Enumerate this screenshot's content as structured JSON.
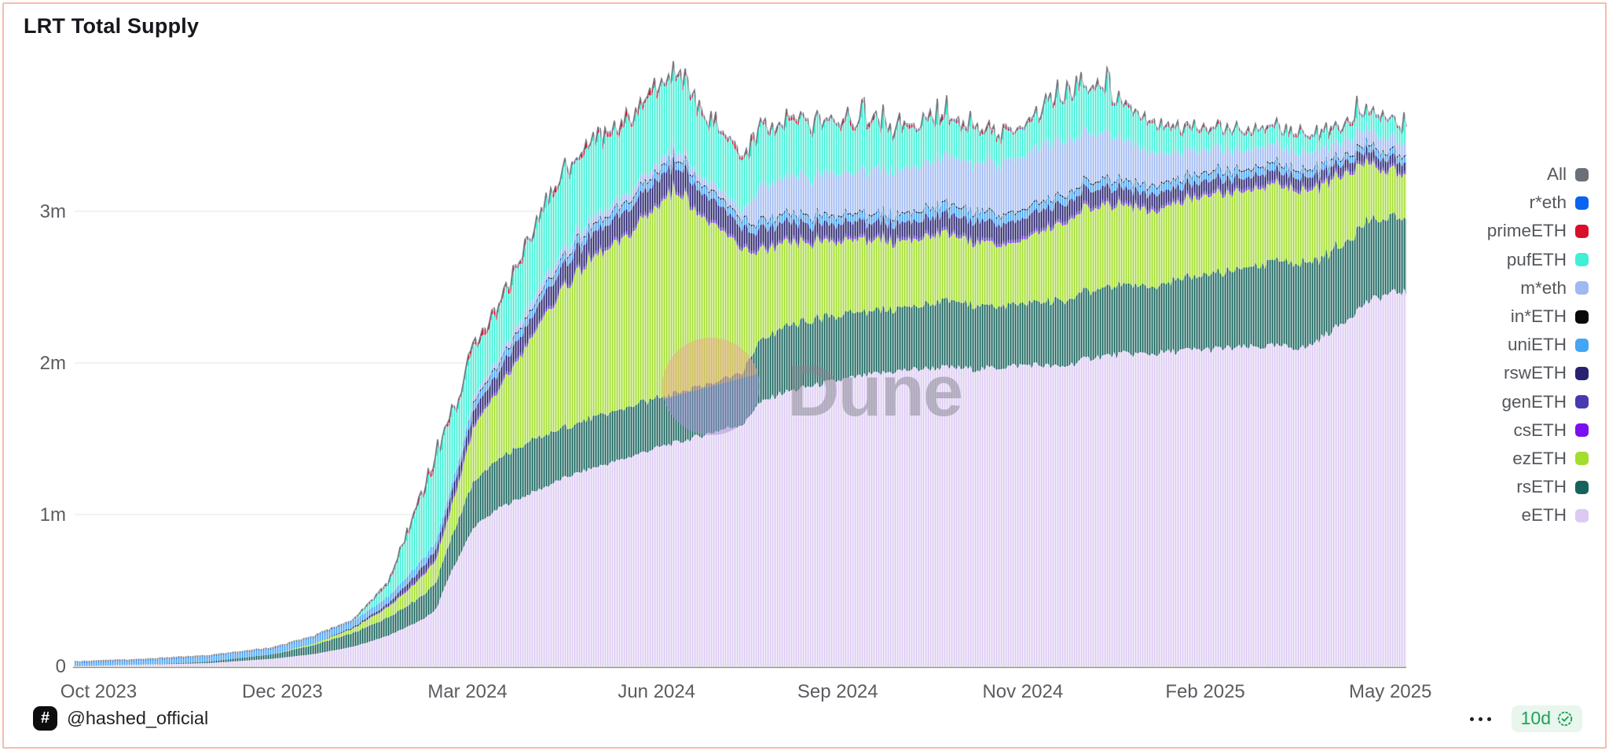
{
  "card": {
    "title": "LRT Total Supply",
    "border_color": "#f7bcab"
  },
  "footer": {
    "author_handle": "@hashed_official",
    "author_icon": "hash-icon",
    "menu_icon": "ellipsis-icon",
    "badge": {
      "label": "10d",
      "icon": "verified-seal-icon",
      "text_color": "#1fa357",
      "bg_color": "#e8f6ed"
    }
  },
  "watermark": {
    "text": "Dune",
    "circle_top_color": "#f0a88a",
    "circle_bottom_color": "#a195d6",
    "text_color": "#84848e"
  },
  "chart_data": {
    "type": "bar",
    "stacked": true,
    "title": "LRT Total Supply",
    "xlabel": "",
    "ylabel": "",
    "unit_note": "y values in millions of tokens; x is Oct 2023 - May 2025 expressed as fraction of axis",
    "grid": "horizontal",
    "ylim": [
      0,
      4.09
    ],
    "y_ticks": [
      {
        "label": "0",
        "value": 0
      },
      {
        "label": "1m",
        "value": 1
      },
      {
        "label": "2m",
        "value": 2
      },
      {
        "label": "3m",
        "value": 3
      }
    ],
    "x_ticks": [
      {
        "label": "Oct 2023",
        "f": 0.018
      },
      {
        "label": "Dec 2023",
        "f": 0.156
      },
      {
        "label": "Mar 2024",
        "f": 0.295
      },
      {
        "label": "Jun 2024",
        "f": 0.437
      },
      {
        "label": "Sep 2024",
        "f": 0.573
      },
      {
        "label": "Nov 2024",
        "f": 0.712
      },
      {
        "label": "Feb 2025",
        "f": 0.849
      },
      {
        "label": "May 2025",
        "f": 0.988
      }
    ],
    "legend_position": "right",
    "legend": [
      {
        "label": "All",
        "color": "#6b6f76"
      },
      {
        "label": "r*eth",
        "color": "#0b63f2"
      },
      {
        "label": "primeETH",
        "color": "#d8102a"
      },
      {
        "label": "pufETH",
        "color": "#40f0d6"
      },
      {
        "label": "m*eth",
        "color": "#9fb9f2"
      },
      {
        "label": "in*ETH",
        "color": "#0a0a0a"
      },
      {
        "label": "uniETH",
        "color": "#45a5f5"
      },
      {
        "label": "rswETH",
        "color": "#272170"
      },
      {
        "label": "genETH",
        "color": "#483bb0"
      },
      {
        "label": "csETH",
        "color": "#7a10ef"
      },
      {
        "label": "ezETH",
        "color": "#a3dd2e"
      },
      {
        "label": "rsETH",
        "color": "#17635c"
      },
      {
        "label": "eETH",
        "color": "#dccaf3"
      }
    ],
    "all_cap_color": "#6b6f76",
    "control_fracs": [
      0,
      0.05,
      0.1,
      0.15,
      0.18,
      0.21,
      0.235,
      0.25,
      0.262,
      0.272,
      0.279,
      0.29,
      0.3,
      0.32,
      0.345,
      0.37,
      0.39,
      0.41,
      0.43,
      0.445,
      0.455,
      0.47,
      0.49,
      0.503,
      0.512,
      0.53,
      0.56,
      0.59,
      0.62,
      0.65,
      0.68,
      0.705,
      0.72,
      0.74,
      0.765,
      0.79,
      0.81,
      0.83,
      0.852,
      0.875,
      0.9,
      0.925,
      0.95,
      0.97,
      0.985,
      0.995
    ],
    "series": [
      {
        "name": "eETH",
        "color": "#dccaf3",
        "values": [
          0,
          0.01,
          0.02,
          0.05,
          0.08,
          0.13,
          0.2,
          0.26,
          0.31,
          0.38,
          0.55,
          0.75,
          0.92,
          1.05,
          1.15,
          1.25,
          1.31,
          1.36,
          1.42,
          1.46,
          1.48,
          1.52,
          1.57,
          1.6,
          1.72,
          1.8,
          1.86,
          1.91,
          1.95,
          1.97,
          1.96,
          1.98,
          1.99,
          1.97,
          2.04,
          2.06,
          2.06,
          2.08,
          2.09,
          2.1,
          2.11,
          2.1,
          2.25,
          2.4,
          2.45,
          2.47
        ]
      },
      {
        "name": "rsETH",
        "color": "#17635c",
        "values": [
          0,
          0,
          0.01,
          0.03,
          0.06,
          0.09,
          0.12,
          0.14,
          0.16,
          0.18,
          0.21,
          0.26,
          0.3,
          0.33,
          0.34,
          0.33,
          0.33,
          0.33,
          0.33,
          0.33,
          0.33,
          0.33,
          0.34,
          0.35,
          0.4,
          0.43,
          0.43,
          0.42,
          0.41,
          0.43,
          0.42,
          0.4,
          0.41,
          0.43,
          0.44,
          0.45,
          0.45,
          0.47,
          0.49,
          0.52,
          0.55,
          0.55,
          0.52,
          0.53,
          0.5,
          0.48
        ]
      },
      {
        "name": "ezETH",
        "color": "#a3dd2e",
        "values": [
          0,
          0,
          0,
          0,
          0.01,
          0.03,
          0.07,
          0.1,
          0.13,
          0.15,
          0.17,
          0.25,
          0.36,
          0.46,
          0.7,
          0.95,
          1.05,
          1.1,
          1.22,
          1.32,
          1.33,
          1.12,
          0.93,
          0.8,
          0.6,
          0.55,
          0.5,
          0.48,
          0.44,
          0.44,
          0.42,
          0.4,
          0.44,
          0.51,
          0.55,
          0.52,
          0.5,
          0.51,
          0.52,
          0.51,
          0.5,
          0.48,
          0.47,
          0.39,
          0.31,
          0.29
        ]
      },
      {
        "name": "csETH",
        "color": "#7a10ef",
        "values": [
          0,
          0,
          0,
          0,
          0,
          0,
          0.004,
          0.008,
          0.008,
          0.008,
          0.008,
          0.008,
          0.008,
          0.008,
          0.008,
          0.008,
          0.008,
          0.008,
          0.008,
          0.008,
          0.008,
          0.008,
          0.008,
          0.008,
          0.008,
          0.008,
          0.008,
          0.008,
          0.008,
          0.008,
          0.008,
          0.008,
          0.008,
          0.008,
          0.008,
          0.008,
          0.008,
          0.008,
          0.008,
          0.008,
          0.008,
          0.008,
          0.008,
          0.008,
          0.008,
          0.008
        ]
      },
      {
        "name": "genETH",
        "color": "#483bb0",
        "values": [
          0,
          0,
          0,
          0,
          0,
          0,
          0,
          0,
          0,
          0.006,
          0.012,
          0.012,
          0.012,
          0.012,
          0.012,
          0.012,
          0.012,
          0.012,
          0.012,
          0.012,
          0.012,
          0.012,
          0.012,
          0.012,
          0.012,
          0.012,
          0.012,
          0.012,
          0.012,
          0.012,
          0.012,
          0.012,
          0.012,
          0.012,
          0.012,
          0.012,
          0.012,
          0.012,
          0.012,
          0.012,
          0.012,
          0.012,
          0.012,
          0.012,
          0.01,
          0.01
        ]
      },
      {
        "name": "rswETH",
        "color": "#272170",
        "values": [
          0,
          0,
          0,
          0,
          0,
          0.01,
          0.02,
          0.04,
          0.05,
          0.06,
          0.07,
          0.08,
          0.09,
          0.1,
          0.12,
          0.13,
          0.14,
          0.15,
          0.15,
          0.15,
          0.15,
          0.14,
          0.13,
          0.12,
          0.12,
          0.11,
          0.1,
          0.1,
          0.1,
          0.11,
          0.12,
          0.12,
          0.12,
          0.11,
          0.1,
          0.09,
          0.09,
          0.08,
          0.08,
          0.07,
          0.07,
          0.07,
          0.06,
          0.06,
          0.06,
          0.06
        ]
      },
      {
        "name": "uniETH",
        "color": "#45a5f5",
        "values": [
          0.02,
          0.025,
          0.03,
          0.035,
          0.04,
          0.04,
          0.045,
          0.05,
          0.05,
          0.05,
          0.05,
          0.05,
          0.05,
          0.05,
          0.05,
          0.05,
          0.05,
          0.05,
          0.05,
          0.05,
          0.05,
          0.05,
          0.05,
          0.05,
          0.05,
          0.05,
          0.05,
          0.05,
          0.055,
          0.06,
          0.06,
          0.055,
          0.05,
          0.05,
          0.05,
          0.05,
          0.05,
          0.05,
          0.05,
          0.05,
          0.045,
          0.045,
          0.04,
          0.04,
          0.04,
          0.04
        ]
      },
      {
        "name": "in*ETH",
        "color": "#0a0a0a",
        "values": [
          0,
          0,
          0,
          0,
          0,
          0,
          0,
          0,
          0,
          0,
          0,
          0,
          0.008,
          0.008,
          0.008,
          0.008,
          0.008,
          0.008,
          0.008,
          0.008,
          0.008,
          0.008,
          0.008,
          0.008,
          0.008,
          0.008,
          0.008,
          0.008,
          0.008,
          0.008,
          0.008,
          0.008,
          0.008,
          0.008,
          0.008,
          0.008,
          0.008,
          0.008,
          0.008,
          0.008,
          0.008,
          0.008,
          0.008,
          0.008,
          0.008,
          0.008
        ]
      },
      {
        "name": "m*eth",
        "color": "#9fb9f2",
        "values": [
          0,
          0,
          0,
          0,
          0,
          0,
          0,
          0,
          0,
          0,
          0,
          0.01,
          0.03,
          0.04,
          0.05,
          0.05,
          0.05,
          0.05,
          0.05,
          0.05,
          0.05,
          0.05,
          0.05,
          0.05,
          0.22,
          0.23,
          0.26,
          0.28,
          0.29,
          0.3,
          0.32,
          0.34,
          0.37,
          0.35,
          0.32,
          0.27,
          0.21,
          0.17,
          0.15,
          0.13,
          0.12,
          0.11,
          0.1,
          0.1,
          0.09,
          0.08
        ]
      },
      {
        "name": "pufETH",
        "color": "#40f0d6",
        "values": [
          0,
          0,
          0,
          0,
          0,
          0,
          0.08,
          0.28,
          0.45,
          0.55,
          0.5,
          0.38,
          0.32,
          0.32,
          0.45,
          0.5,
          0.48,
          0.45,
          0.46,
          0.47,
          0.46,
          0.42,
          0.35,
          0.32,
          0.38,
          0.35,
          0.34,
          0.3,
          0.25,
          0.23,
          0.2,
          0.17,
          0.21,
          0.26,
          0.28,
          0.22,
          0.18,
          0.15,
          0.13,
          0.12,
          0.11,
          0.1,
          0.09,
          0.1,
          0.13,
          0.08
        ]
      },
      {
        "name": "primeETH",
        "color": "#d8102a",
        "values": [
          0,
          0,
          0,
          0,
          0,
          0,
          0.01,
          0.015,
          0.02,
          0.025,
          0.025,
          0.025,
          0.025,
          0.025,
          0.025,
          0.025,
          0.025,
          0.025,
          0.025,
          0.025,
          0.025,
          0.025,
          0.025,
          0.025,
          0.02,
          0.02,
          0.02,
          0.02,
          0.02,
          0.02,
          0.015,
          0.015,
          0.015,
          0.015,
          0.015,
          0.01,
          0.01,
          0.01,
          0.01,
          0.01,
          0.01,
          0.01,
          0.01,
          0.01,
          0.01,
          0.01
        ]
      },
      {
        "name": "r*eth",
        "color": "#0b63f2",
        "values": [
          0.004,
          0.004,
          0.004,
          0.004,
          0.004,
          0.004,
          0.004,
          0.004,
          0.004,
          0.004,
          0.004,
          0.004,
          0.004,
          0.004,
          0.004,
          0.004,
          0.004,
          0.004,
          0.004,
          0.004,
          0.004,
          0.004,
          0.004,
          0.004,
          0.004,
          0.004,
          0.004,
          0.004,
          0.004,
          0.004,
          0.004,
          0.004,
          0.004,
          0.004,
          0.004,
          0.004,
          0.004,
          0.004,
          0.004,
          0.004,
          0.004,
          0.004,
          0.004,
          0.004,
          0.004,
          0.004
        ]
      }
    ]
  }
}
